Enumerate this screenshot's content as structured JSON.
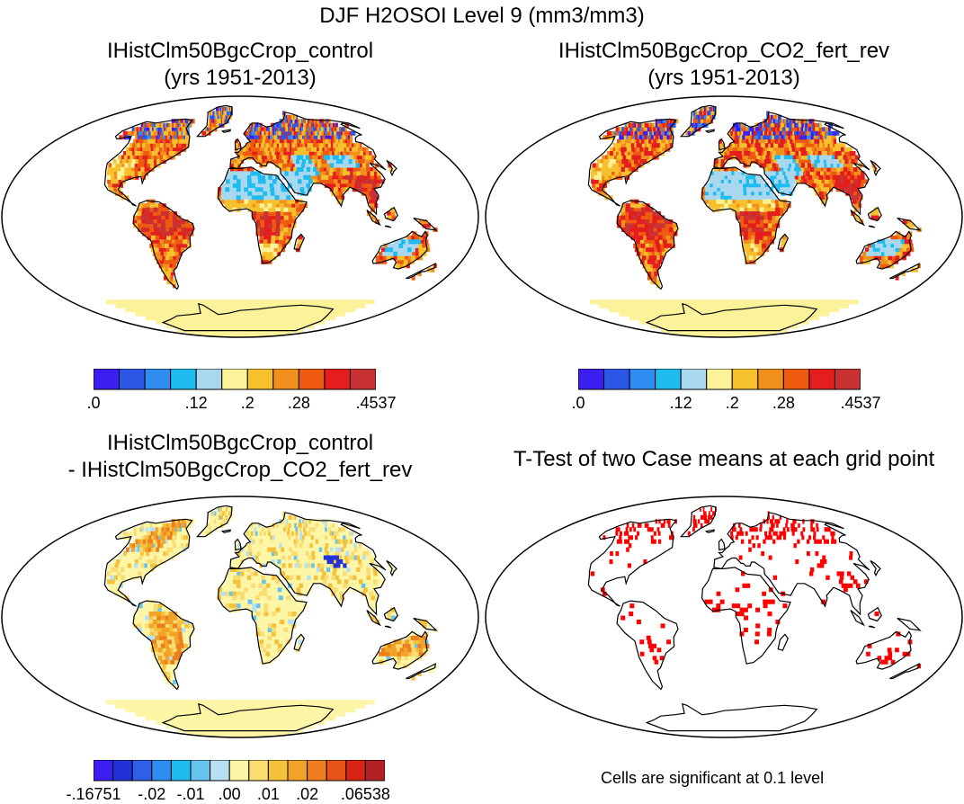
{
  "title": "DJF H2OSOI Level 9 (mm3/mm3)",
  "panels": [
    {
      "id": "control",
      "title_line1": "IHistClm50BgcCrop_control",
      "title_line2": "(yrs 1951-2013)"
    },
    {
      "id": "co2",
      "title_line1": "IHistClm50BgcCrop_CO2_fert_rev",
      "title_line2": "(yrs 1951-2013)"
    },
    {
      "id": "diff",
      "title_line1": "IHistClm50BgcCrop_control",
      "title_line2": "- IHistClm50BgcCrop_CO2_fert_rev"
    },
    {
      "id": "ttest",
      "title_line1": "T-Test of two Case means at each grid point",
      "title_line2": ""
    }
  ],
  "colorbars": {
    "abs": {
      "colors": [
        "#3b1ef0",
        "#2c57e6",
        "#2f8cf0",
        "#1ebcf0",
        "#a9d8ee",
        "#fbf29a",
        "#f7c12e",
        "#f2901e",
        "#ee5a10",
        "#e41e1e",
        "#c83232"
      ],
      "labels": [
        ".0",
        ".12",
        ".2",
        ".28",
        ".4537"
      ],
      "label_boundaries": [
        0,
        4,
        6,
        8,
        11
      ]
    },
    "diff": {
      "colors": [
        "#3b1ef0",
        "#2133d8",
        "#2e5fe6",
        "#2f8cf0",
        "#1ebcf0",
        "#65c5ee",
        "#b7e0f2",
        "#fcf6a6",
        "#fadc72",
        "#f6c13a",
        "#f2a226",
        "#ee7f1e",
        "#e85318",
        "#d82414",
        "#b22222"
      ],
      "labels": [
        "-.16751",
        "-.02",
        "-.01",
        ".00",
        ".01",
        ".02",
        ".06538"
      ],
      "label_boundaries": [
        0,
        3,
        5,
        7,
        9,
        11,
        14
      ]
    }
  },
  "ttest_note": "Cells are significant at 0.1 level"
}
